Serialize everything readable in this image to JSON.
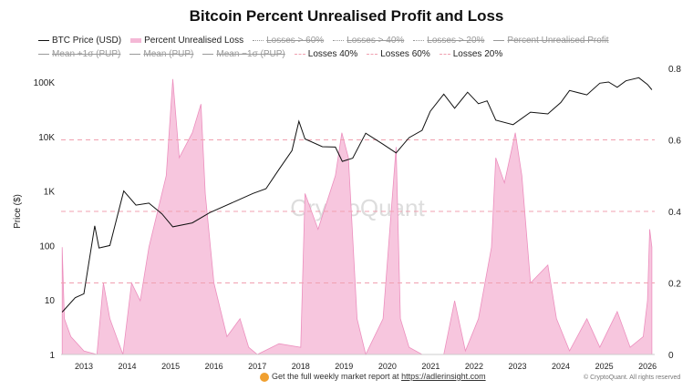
{
  "chart_data": {
    "type": "line",
    "title": "Bitcoin Percent Unrealised Profit and Loss",
    "ylabel": "Price ($)",
    "y_scale": "log",
    "ylim": [
      1,
      200000
    ],
    "y_ticks": [
      "1",
      "10",
      "100",
      "1K",
      "10K",
      "100K"
    ],
    "y2lim": [
      0,
      0.8
    ],
    "y2_ticks": [
      "0",
      "0.2",
      "0.4",
      "0.6",
      "0.8"
    ],
    "x_ticks": [
      "2013",
      "2014",
      "2015",
      "2016",
      "2017",
      "2018",
      "2019",
      "2020",
      "2021",
      "2022",
      "2023",
      "2024",
      "2025",
      "2026"
    ],
    "grid": false,
    "legend_placement": "top",
    "watermark": "CryptoQuant",
    "legend": [
      {
        "label": "BTC Price (USD)",
        "style": "line",
        "color": "#111111",
        "hidden": false
      },
      {
        "label": "Percent Unrealised Loss",
        "style": "area",
        "color": "#f4b8d6",
        "hidden": false
      },
      {
        "label": "Losses > 60%",
        "style": "dotted",
        "color": "#999999",
        "hidden": true
      },
      {
        "label": "Losses > 40%",
        "style": "dotted",
        "color": "#999999",
        "hidden": true
      },
      {
        "label": "Losses > 20%",
        "style": "dotted",
        "color": "#999999",
        "hidden": true
      },
      {
        "label": "Percent Unrealised Profit",
        "style": "line",
        "color": "#999999",
        "hidden": true
      },
      {
        "label": "Mean +1σ (PUP)",
        "style": "line",
        "color": "#999999",
        "hidden": true
      },
      {
        "label": "Mean (PUP)",
        "style": "line",
        "color": "#999999",
        "hidden": true
      },
      {
        "label": "Mean −1σ (PUP)",
        "style": "line",
        "color": "#999999",
        "hidden": true
      },
      {
        "label": "Losses 40%",
        "style": "dashed",
        "color": "#f0a0b0",
        "hidden": false
      },
      {
        "label": "Losses 60%",
        "style": "dashed",
        "color": "#f0a0b0",
        "hidden": false
      },
      {
        "label": "Losses 20%",
        "style": "dashed",
        "color": "#f0a0b0",
        "hidden": false
      }
    ],
    "thresholds": [
      0.2,
      0.4,
      0.6
    ],
    "series": [
      {
        "name": "BTC Price (USD)",
        "axis": "left",
        "points": [
          [
            2012.5,
            6
          ],
          [
            2012.8,
            11
          ],
          [
            2013.0,
            13
          ],
          [
            2013.25,
            230
          ],
          [
            2013.35,
            90
          ],
          [
            2013.6,
            100
          ],
          [
            2013.92,
            1000
          ],
          [
            2014.2,
            550
          ],
          [
            2014.5,
            600
          ],
          [
            2014.8,
            380
          ],
          [
            2015.05,
            220
          ],
          [
            2015.5,
            260
          ],
          [
            2015.9,
            400
          ],
          [
            2016.5,
            650
          ],
          [
            2016.9,
            900
          ],
          [
            2017.2,
            1100
          ],
          [
            2017.5,
            2500
          ],
          [
            2017.8,
            5500
          ],
          [
            2017.96,
            19000
          ],
          [
            2018.1,
            9000
          ],
          [
            2018.5,
            6500
          ],
          [
            2018.8,
            6400
          ],
          [
            2018.96,
            3500
          ],
          [
            2019.2,
            4000
          ],
          [
            2019.5,
            11500
          ],
          [
            2019.9,
            7200
          ],
          [
            2020.2,
            5000
          ],
          [
            2020.5,
            9500
          ],
          [
            2020.8,
            13000
          ],
          [
            2020.99,
            29000
          ],
          [
            2021.3,
            60000
          ],
          [
            2021.55,
            33000
          ],
          [
            2021.85,
            65000
          ],
          [
            2022.1,
            40000
          ],
          [
            2022.3,
            45000
          ],
          [
            2022.5,
            20000
          ],
          [
            2022.9,
            16500
          ],
          [
            2023.3,
            28000
          ],
          [
            2023.7,
            26000
          ],
          [
            2024.0,
            42000
          ],
          [
            2024.2,
            70000
          ],
          [
            2024.6,
            58000
          ],
          [
            2024.9,
            95000
          ],
          [
            2025.1,
            100000
          ],
          [
            2025.3,
            80000
          ],
          [
            2025.5,
            105000
          ],
          [
            2025.8,
            120000
          ],
          [
            2026.0,
            90000
          ],
          [
            2026.1,
            72000
          ]
        ]
      },
      {
        "name": "Percent Unrealised Loss",
        "axis": "right",
        "points": [
          [
            2012.5,
            0.3
          ],
          [
            2012.55,
            0.1
          ],
          [
            2012.7,
            0.05
          ],
          [
            2013.0,
            0.01
          ],
          [
            2013.3,
            0
          ],
          [
            2013.45,
            0.2
          ],
          [
            2013.6,
            0.1
          ],
          [
            2013.9,
            0
          ],
          [
            2014.1,
            0.2
          ],
          [
            2014.3,
            0.15
          ],
          [
            2014.5,
            0.3
          ],
          [
            2014.9,
            0.5
          ],
          [
            2015.05,
            0.77
          ],
          [
            2015.2,
            0.55
          ],
          [
            2015.5,
            0.62
          ],
          [
            2015.7,
            0.7
          ],
          [
            2015.8,
            0.45
          ],
          [
            2016.0,
            0.2
          ],
          [
            2016.3,
            0.05
          ],
          [
            2016.6,
            0.1
          ],
          [
            2016.8,
            0.02
          ],
          [
            2017.0,
            0
          ],
          [
            2017.5,
            0.03
          ],
          [
            2018.0,
            0.02
          ],
          [
            2018.1,
            0.45
          ],
          [
            2018.4,
            0.35
          ],
          [
            2018.8,
            0.5
          ],
          [
            2018.95,
            0.62
          ],
          [
            2019.1,
            0.55
          ],
          [
            2019.3,
            0.1
          ],
          [
            2019.5,
            0
          ],
          [
            2019.9,
            0.1
          ],
          [
            2020.2,
            0.58
          ],
          [
            2020.3,
            0.1
          ],
          [
            2020.5,
            0.02
          ],
          [
            2020.8,
            0
          ],
          [
            2021.3,
            0
          ],
          [
            2021.55,
            0.15
          ],
          [
            2021.8,
            0.01
          ],
          [
            2022.1,
            0.1
          ],
          [
            2022.4,
            0.3
          ],
          [
            2022.5,
            0.55
          ],
          [
            2022.7,
            0.48
          ],
          [
            2022.95,
            0.62
          ],
          [
            2023.1,
            0.5
          ],
          [
            2023.3,
            0.2
          ],
          [
            2023.7,
            0.25
          ],
          [
            2023.9,
            0.1
          ],
          [
            2024.2,
            0.01
          ],
          [
            2024.6,
            0.1
          ],
          [
            2024.9,
            0.02
          ],
          [
            2025.3,
            0.12
          ],
          [
            2025.6,
            0.02
          ],
          [
            2025.9,
            0.05
          ],
          [
            2026.0,
            0.15
          ],
          [
            2026.05,
            0.35
          ],
          [
            2026.1,
            0.3
          ]
        ]
      }
    ]
  },
  "footer": {
    "text": "Get the full weekly market report at ",
    "link": "https://adlerinsight.com",
    "copyright": "© CryptoQuant. All rights reserved"
  }
}
